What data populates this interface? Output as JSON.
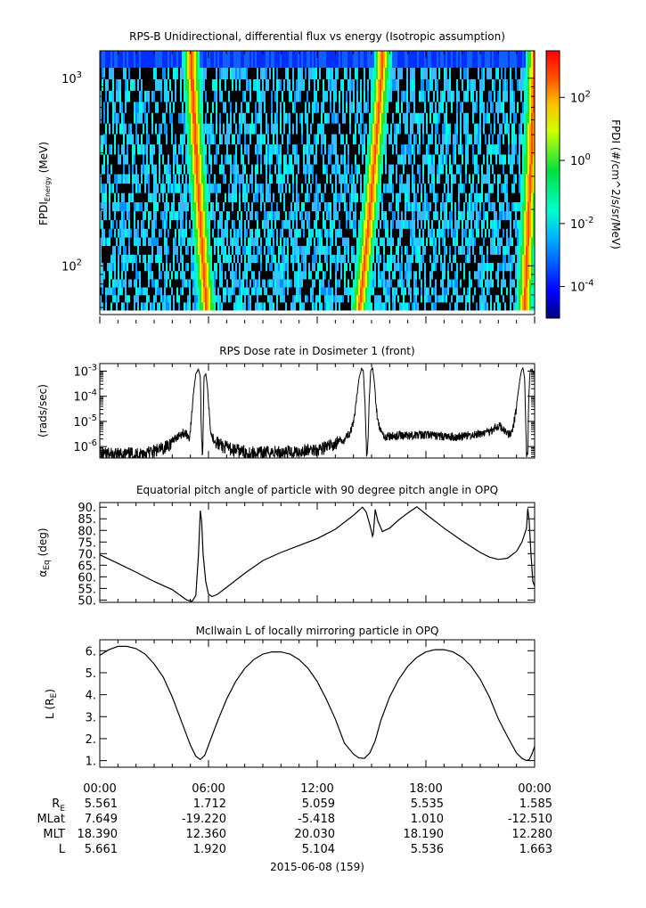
{
  "chart_data": [
    {
      "type": "heatmap",
      "title": "RPS-B  Unidirectional, differential flux vs energy (Isotropic assumption)",
      "ylabel": "FPDI",
      "ylabel_sub": "Energy",
      "ylabel_unit": "(MeV)",
      "yscale": "log",
      "ylim": [
        55,
        1400
      ],
      "yticks": [
        {
          "value": 100,
          "base": "10",
          "exp": "2"
        },
        {
          "value": 1000,
          "base": "10",
          "exp": "3"
        }
      ],
      "energy_channels_mev": [
        58,
        64,
        70,
        77,
        85,
        94,
        104,
        115,
        128,
        142,
        158,
        176,
        196,
        219,
        245,
        275,
        309,
        348,
        393,
        445,
        505,
        575,
        655,
        750,
        860,
        990,
        1140,
        1400
      ],
      "flux_peaks_hours": [
        {
          "t_low_mev": 5.85,
          "t_high_mev": 5.0
        },
        {
          "t_low_mev": 14.3,
          "t_high_mev": 15.55
        },
        {
          "t_low_mev": 23.4,
          "t_high_mev": 23.95
        }
      ],
      "colorbar": {
        "label": "FPDI (#/cm^2/s/sr/MeV)",
        "scale": "log",
        "range": [
          1e-05,
          3000
        ],
        "ticks": [
          {
            "base": "10",
            "exp": "-4",
            "value": 0.0001
          },
          {
            "base": "10",
            "exp": "-2",
            "value": 0.01
          },
          {
            "base": "10",
            "exp": "0",
            "value": 1
          },
          {
            "base": "10",
            "exp": "2",
            "value": 100
          }
        ]
      }
    },
    {
      "type": "line",
      "title": "RPS  Dose rate in Dosimeter 1 (front)",
      "ylabel": "(rads/sec)",
      "yscale": "log",
      "ylim": [
        3.5e-07,
        0.002
      ],
      "yticks": [
        {
          "value": 1e-06,
          "base": "10",
          "exp": "-6"
        },
        {
          "value": 1e-05,
          "base": "10",
          "exp": "-5"
        },
        {
          "value": 0.0001,
          "base": "10",
          "exp": "-4"
        },
        {
          "value": 0.001,
          "base": "10",
          "exp": "-3"
        }
      ],
      "series": [
        {
          "x_hours": [
            0,
            0.3,
            0.5,
            0.8,
            1.2,
            1.6,
            2.0,
            2.4,
            2.8,
            3.2,
            3.6,
            3.8,
            4.0,
            4.2,
            4.4,
            4.6,
            4.8,
            4.95,
            5.05,
            5.15,
            5.3,
            5.45,
            5.55,
            5.62,
            5.68,
            5.75,
            5.85,
            5.95,
            6.05,
            6.15,
            6.25,
            6.4,
            6.6,
            6.8,
            7.0,
            7.5,
            8.0,
            8.5,
            9.0,
            9.5,
            10.0,
            10.5,
            11.0,
            11.5,
            12.0,
            12.4,
            12.8,
            13.2,
            13.5,
            13.8,
            14.0,
            14.15,
            14.3,
            14.45,
            14.55,
            14.65,
            14.72,
            14.78,
            14.85,
            14.95,
            15.05,
            15.15,
            15.3,
            15.45,
            15.6,
            15.8,
            16.0,
            16.5,
            17.0,
            17.5,
            18.0,
            18.5,
            19.0,
            19.5,
            20.0,
            20.5,
            21.0,
            21.5,
            21.8,
            22.0,
            22.2,
            22.4,
            22.6,
            22.8,
            22.95,
            23.05,
            23.15,
            23.25,
            23.35,
            23.45,
            23.55,
            23.62,
            23.68,
            23.75,
            23.85,
            23.95,
            24.0
          ],
          "values": [
            5e-07,
            4.5e-07,
            5e-07,
            4.5e-07,
            5e-07,
            5e-07,
            5e-07,
            5.5e-07,
            6e-07,
            7e-07,
            9e-07,
            1.2e-06,
            1.6e-06,
            2.2e-06,
            3e-06,
            3.5e-06,
            3e-06,
            2.2e-06,
            1e-05,
            0.0001,
            0.0008,
            0.0012,
            0.0006,
            1e-06,
            5e-07,
            0.0006,
            0.0008,
            0.0002,
            2e-05,
            3e-06,
            2.2e-06,
            1.6e-06,
            1.2e-06,
            1e-06,
            9e-07,
            7e-07,
            6e-07,
            5.5e-07,
            5.5e-07,
            6e-07,
            6e-07,
            6e-07,
            6.5e-07,
            7e-07,
            8e-07,
            9e-07,
            1.1e-06,
            1.5e-06,
            2e-06,
            3.5e-06,
            8e-06,
            5e-05,
            0.0005,
            0.0013,
            0.001,
            3e-05,
            5e-07,
            5e-07,
            3e-05,
            0.001,
            0.0014,
            0.0004,
            2e-05,
            5e-06,
            3e-06,
            2.5e-06,
            2.5e-06,
            2.7e-06,
            2.8e-06,
            2.8e-06,
            3e-06,
            2.7e-06,
            2.5e-06,
            2.4e-06,
            2.5e-06,
            2.8e-06,
            3.2e-06,
            4e-06,
            5.5e-06,
            6.5e-06,
            6e-06,
            4e-06,
            3e-06,
            5e-06,
            2e-05,
            8e-05,
            0.0003,
            0.0009,
            0.0014,
            0.0005,
            5e-07,
            5e-07,
            0.0001,
            0.001,
            0.0012,
            0.0008,
            0.0008
          ]
        }
      ]
    },
    {
      "type": "line",
      "title": "Equatorial pitch angle of particle with 90 degree pitch angle in OPQ",
      "ylabel": "α",
      "ylabel_sub": "Eq",
      "ylabel_unit": "(deg)",
      "ylim": [
        49,
        92
      ],
      "yticks": [
        "50.",
        "55.",
        "60.",
        "65.",
        "70.",
        "75.",
        "80.",
        "85.",
        "90."
      ],
      "series": [
        {
          "x_hours": [
            0,
            1,
            2,
            3,
            4,
            4.8,
            5.1,
            5.3,
            5.45,
            5.55,
            5.62,
            5.7,
            5.85,
            6.0,
            6.2,
            6.5,
            7,
            8,
            9,
            10,
            11,
            12,
            12.5,
            13,
            13.5,
            14.0,
            14.5,
            14.7,
            14.85,
            15.0,
            15.05,
            15.1,
            15.2,
            15.35,
            15.6,
            16,
            16.5,
            17,
            17.5,
            18,
            19,
            20,
            21,
            21.5,
            22,
            22.5,
            23.0,
            23.3,
            23.55,
            23.62,
            23.7,
            23.8,
            23.9,
            24.0
          ],
          "values": [
            69.5,
            65.8,
            62,
            58,
            54.5,
            50,
            49.5,
            52,
            70,
            88.5,
            84,
            70,
            58,
            52.5,
            51.5,
            52.5,
            55.5,
            61.5,
            67,
            70.5,
            73.5,
            76.5,
            78.5,
            80.5,
            83.5,
            86.5,
            90,
            88,
            84,
            79.5,
            77.5,
            78.5,
            89,
            84,
            79.5,
            81,
            84.5,
            87.5,
            90.2,
            87,
            81,
            75.5,
            70.5,
            68.5,
            67.5,
            68,
            71,
            75,
            81,
            89.5,
            84,
            70,
            58,
            56
          ]
        }
      ]
    },
    {
      "type": "line",
      "title": "McIlwain L of locally mirroring particle in OPQ",
      "ylabel": "L (R",
      "ylabel_sub": "E",
      "ylabel_unit": ")",
      "ylim": [
        0.7,
        6.5
      ],
      "yticks": [
        "1.",
        "2.",
        "3.",
        "4.",
        "5.",
        "6."
      ],
      "series": [
        {
          "x_hours": [
            0,
            0.5,
            1.0,
            1.5,
            2.0,
            2.5,
            3.0,
            3.5,
            4.0,
            4.5,
            5.0,
            5.3,
            5.55,
            5.8,
            6.0,
            6.5,
            7,
            7.5,
            8,
            8.5,
            9,
            9.5,
            10,
            10.5,
            11,
            11.5,
            12,
            12.5,
            13,
            13.5,
            14.0,
            14.3,
            14.6,
            14.9,
            15.2,
            15.5,
            16,
            16.5,
            17,
            17.5,
            18,
            18.5,
            19,
            19.5,
            20,
            20.5,
            21,
            21.5,
            22,
            22.5,
            23.0,
            23.3,
            23.55,
            23.7,
            23.85,
            24.0
          ],
          "values": [
            5.8,
            6.05,
            6.2,
            6.2,
            6.1,
            5.85,
            5.4,
            4.8,
            3.9,
            2.8,
            1.7,
            1.2,
            1.05,
            1.25,
            1.7,
            2.8,
            3.8,
            4.6,
            5.2,
            5.6,
            5.85,
            5.95,
            5.95,
            5.85,
            5.6,
            5.2,
            4.6,
            3.8,
            2.9,
            1.8,
            1.3,
            1.12,
            1.1,
            1.35,
            1.9,
            2.8,
            3.9,
            4.7,
            5.3,
            5.7,
            5.95,
            6.05,
            6.05,
            5.95,
            5.7,
            5.3,
            4.7,
            3.9,
            2.9,
            2.1,
            1.35,
            1.1,
            1.0,
            1.05,
            1.3,
            1.65
          ]
        }
      ]
    }
  ],
  "x_axis": {
    "tick_labels": [
      "00:00",
      "06:00",
      "12:00",
      "18:00",
      "00:00"
    ],
    "rows": [
      {
        "label": "R",
        "label_sub": "E",
        "values": [
          "5.561",
          "1.712",
          "5.059",
          "5.535",
          "1.585"
        ]
      },
      {
        "label": "MLat",
        "values": [
          "7.649",
          "-19.220",
          "-5.418",
          "1.010",
          "-12.510"
        ]
      },
      {
        "label": "MLT",
        "values": [
          "18.390",
          "12.360",
          "20.030",
          "18.190",
          "12.280"
        ]
      },
      {
        "label": "L",
        "values": [
          "5.661",
          "1.920",
          "5.104",
          "5.536",
          "1.663"
        ]
      }
    ],
    "date_label": "2015-06-08 (159)"
  }
}
